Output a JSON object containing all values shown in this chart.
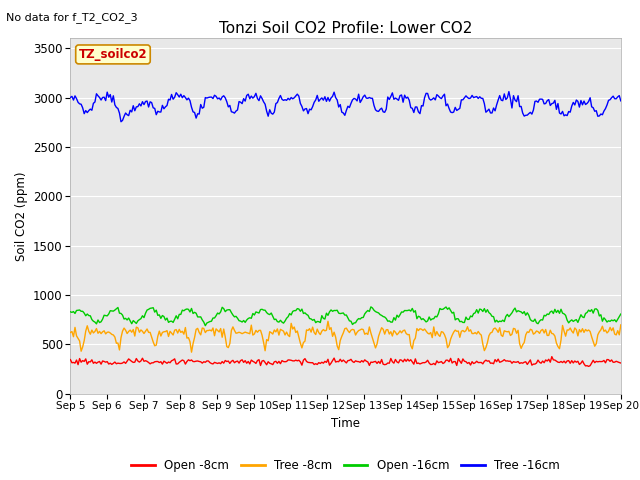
{
  "title": "Tonzi Soil CO2 Profile: Lower CO2",
  "no_data_text": "No data for f_T2_CO2_3",
  "xlabel": "Time",
  "ylabel": "Soil CO2 (ppm)",
  "ylim": [
    0,
    3600
  ],
  "yticks": [
    0,
    500,
    1000,
    1500,
    2000,
    2500,
    3000,
    3500
  ],
  "legend_labels": [
    "Open -8cm",
    "Tree -8cm",
    "Open -16cm",
    "Tree -16cm"
  ],
  "legend_colors": [
    "#ff0000",
    "#ffa500",
    "#00cc00",
    "#0000ff"
  ],
  "bg_color": "#e8e8e8",
  "fig_color": "#ffffff",
  "annotation_text": "TZ_soilco2",
  "annotation_bg": "#ffffcc",
  "annotation_border": "#cc8800",
  "annotation_text_color": "#cc0000",
  "line_width": 1.0,
  "n_points": 360,
  "open_8cm_base": 320,
  "tree_8cm_base": 630,
  "open_16cm_base": 790,
  "tree_16cm_base": 3000
}
